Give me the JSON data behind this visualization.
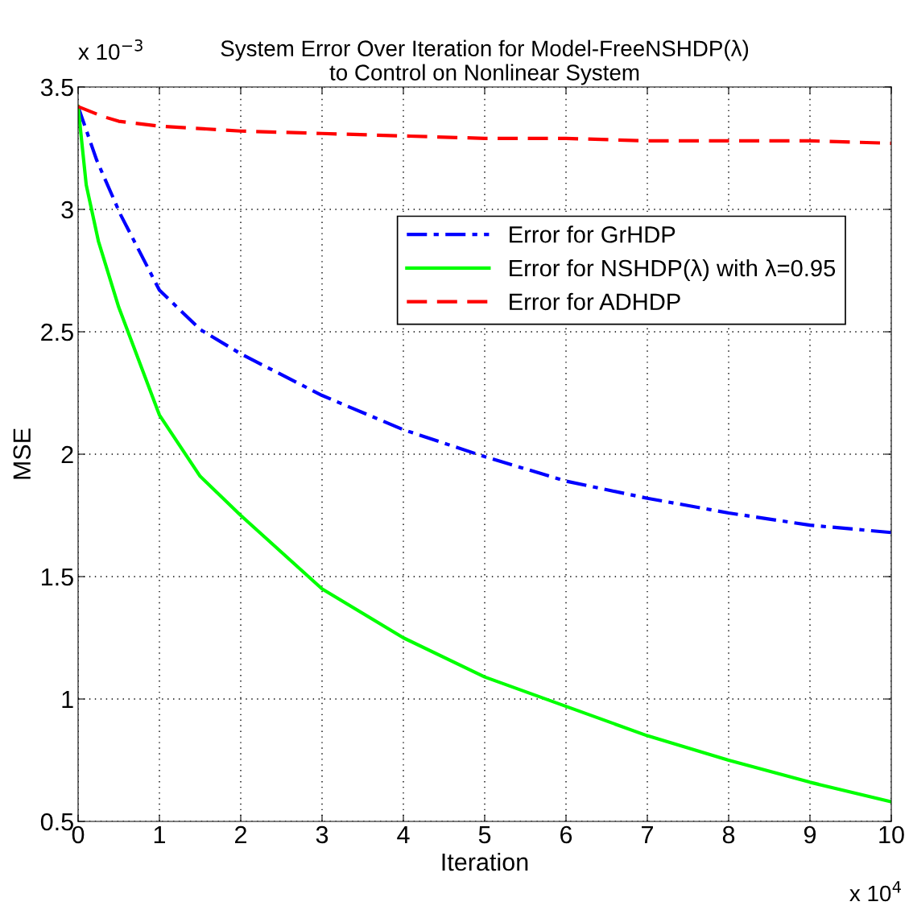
{
  "chart_data": {
    "type": "line",
    "title": "System Error Over Iteration for Model-FreeNSHDP(λ)\nto Control on Nonlinear System",
    "xlabel": "Iteration",
    "ylabel": "MSE",
    "xlim": [
      0,
      10
    ],
    "xticks": [
      0,
      1,
      2,
      3,
      4,
      5,
      6,
      7,
      8,
      9,
      10
    ],
    "ylim": [
      0.5,
      3.5
    ],
    "yticks": [
      0.5,
      1,
      1.5,
      2,
      2.5,
      3,
      3.5
    ],
    "grid": true,
    "legend": "top right",
    "marker": "none",
    "annotations": [
      "x 10$^{−3}$",
      "x 10$^{4}$"
    ],
    "series": [
      {
        "name": "Error for GrHDP",
        "color": "#0000ff",
        "line_style": "dashdot",
        "x": [
          0,
          0.23,
          0.52,
          1,
          1.5,
          2,
          3,
          4,
          5,
          6,
          7,
          8,
          9,
          10
        ],
        "values": [
          3.42,
          3.2,
          2.98,
          2.67,
          2.51,
          2.41,
          2.24,
          2.1,
          1.99,
          1.89,
          1.82,
          1.76,
          1.71,
          1.68
        ]
      },
      {
        "name": "Error for NSHDP(λ) with λ=0.95",
        "color": "#00ff00",
        "line_style": "solid",
        "x": [
          0,
          0.1,
          0.25,
          0.5,
          1,
          1.5,
          2,
          3,
          4,
          5,
          6,
          7,
          8,
          9,
          10
        ],
        "values": [
          3.42,
          3.1,
          2.87,
          2.6,
          2.16,
          1.91,
          1.75,
          1.45,
          1.25,
          1.09,
          0.97,
          0.85,
          0.75,
          0.66,
          0.58
        ]
      },
      {
        "name": "Error for ADHDP",
        "color": "#ff0000",
        "line_style": "dashed",
        "x": [
          0,
          0.3,
          0.5,
          1,
          2,
          3,
          4,
          5,
          6,
          7,
          8,
          9,
          10
        ],
        "values": [
          3.42,
          3.38,
          3.36,
          3.34,
          3.32,
          3.31,
          3.3,
          3.29,
          3.29,
          3.28,
          3.28,
          3.28,
          3.27
        ]
      }
    ]
  }
}
